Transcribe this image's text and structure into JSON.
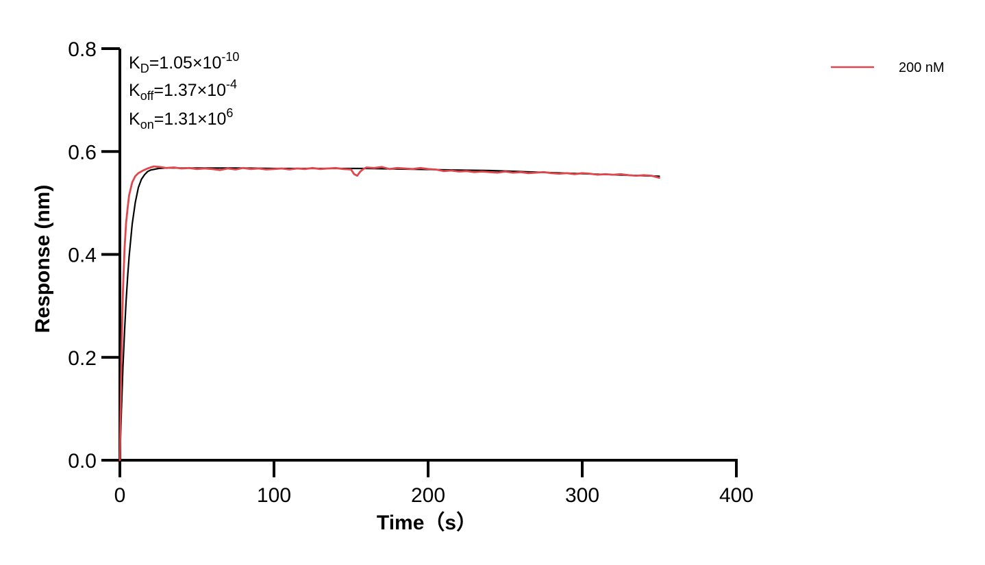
{
  "chart_data": {
    "type": "line",
    "title": "",
    "xlabel": "Time（s）",
    "ylabel": "Response (nm)",
    "xlim": [
      0,
      400
    ],
    "ylim": [
      0,
      0.8
    ],
    "xticks": [
      0,
      100,
      200,
      300,
      400
    ],
    "yticks": [
      0.0,
      0.2,
      0.4,
      0.6,
      0.8
    ],
    "xtick_labels": [
      "0",
      "100",
      "200",
      "300",
      "400"
    ],
    "ytick_labels": [
      "0.0",
      "0.2",
      "0.4",
      "0.6",
      "0.8"
    ],
    "grid": false,
    "legend_position": "top-right",
    "annotations": [
      {
        "base": "K",
        "sub": "D",
        "eq": "=1.05×10",
        "sup": "-10"
      },
      {
        "base": "K",
        "sub": "off",
        "eq": "=1.37×10",
        "sup": "-4"
      },
      {
        "base": "K",
        "sub": "on",
        "eq": "=1.31×10",
        "sup": "6"
      }
    ],
    "series": [
      {
        "name": "200 nM",
        "color": "#e0474c",
        "x": [
          0,
          1,
          2,
          3,
          4,
          5,
          6,
          8,
          10,
          12,
          15,
          18,
          22,
          26,
          30,
          35,
          40,
          45,
          50,
          55,
          60,
          65,
          70,
          75,
          80,
          85,
          90,
          95,
          100,
          105,
          110,
          115,
          120,
          125,
          130,
          135,
          140,
          145,
          150,
          152,
          154,
          156,
          158,
          160,
          165,
          170,
          175,
          180,
          185,
          190,
          195,
          200,
          205,
          210,
          215,
          220,
          225,
          230,
          235,
          240,
          245,
          250,
          255,
          260,
          265,
          270,
          275,
          280,
          285,
          290,
          295,
          300,
          305,
          310,
          315,
          320,
          325,
          330,
          335,
          340,
          345,
          350
        ],
        "y": [
          0.0,
          0.2,
          0.33,
          0.41,
          0.46,
          0.49,
          0.515,
          0.54,
          0.552,
          0.558,
          0.563,
          0.567,
          0.571,
          0.57,
          0.568,
          0.569,
          0.567,
          0.568,
          0.566,
          0.567,
          0.566,
          0.564,
          0.567,
          0.565,
          0.568,
          0.566,
          0.567,
          0.565,
          0.566,
          0.567,
          0.565,
          0.567,
          0.566,
          0.568,
          0.566,
          0.567,
          0.568,
          0.566,
          0.565,
          0.556,
          0.553,
          0.561,
          0.566,
          0.569,
          0.568,
          0.57,
          0.566,
          0.568,
          0.567,
          0.566,
          0.568,
          0.566,
          0.565,
          0.562,
          0.563,
          0.561,
          0.562,
          0.56,
          0.561,
          0.56,
          0.559,
          0.561,
          0.559,
          0.56,
          0.558,
          0.559,
          0.56,
          0.558,
          0.557,
          0.558,
          0.556,
          0.558,
          0.557,
          0.555,
          0.556,
          0.555,
          0.556,
          0.554,
          0.553,
          0.554,
          0.553,
          0.549
        ]
      },
      {
        "name": "",
        "color": "#000000",
        "x": [
          0,
          1,
          2,
          3,
          4,
          5,
          6,
          8,
          10,
          12,
          14,
          16,
          18,
          20,
          25,
          30,
          40,
          60,
          80,
          100,
          120,
          140,
          160,
          180,
          200,
          220,
          240,
          260,
          280,
          300,
          320,
          340,
          350
        ],
        "y": [
          0.0,
          0.098,
          0.181,
          0.25,
          0.307,
          0.356,
          0.396,
          0.459,
          0.501,
          0.53,
          0.546,
          0.555,
          0.561,
          0.564,
          0.567,
          0.568,
          0.568,
          0.568,
          0.568,
          0.567,
          0.567,
          0.567,
          0.567,
          0.566,
          0.565,
          0.564,
          0.563,
          0.561,
          0.559,
          0.557,
          0.555,
          0.553,
          0.552
        ]
      }
    ]
  }
}
